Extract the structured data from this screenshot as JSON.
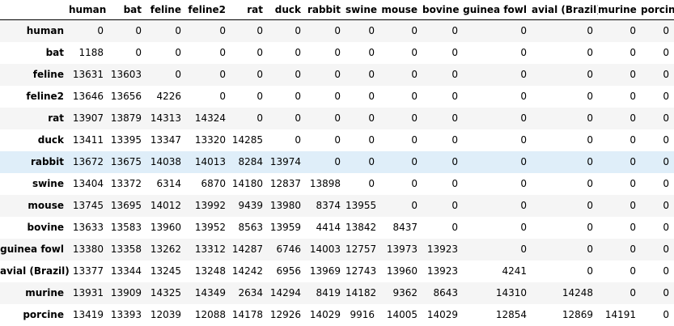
{
  "table": {
    "corner": "",
    "columns": [
      "human",
      "bat",
      "feline",
      "feline2",
      "rat",
      "duck",
      "rabbit",
      "swine",
      "mouse",
      "bovine",
      "guinea fowl",
      "avial (Brazil)",
      "murine",
      "porcine"
    ],
    "rows": [
      {
        "label": "human",
        "values": [
          "0",
          "0",
          "0",
          "0",
          "0",
          "0",
          "0",
          "0",
          "0",
          "0",
          "0",
          "0",
          "0",
          "0"
        ]
      },
      {
        "label": "bat",
        "values": [
          "1188",
          "0",
          "0",
          "0",
          "0",
          "0",
          "0",
          "0",
          "0",
          "0",
          "0",
          "0",
          "0",
          "0"
        ]
      },
      {
        "label": "feline",
        "values": [
          "13631",
          "13603",
          "0",
          "0",
          "0",
          "0",
          "0",
          "0",
          "0",
          "0",
          "0",
          "0",
          "0",
          "0"
        ]
      },
      {
        "label": "feline2",
        "values": [
          "13646",
          "13656",
          "4226",
          "0",
          "0",
          "0",
          "0",
          "0",
          "0",
          "0",
          "0",
          "0",
          "0",
          "0"
        ]
      },
      {
        "label": "rat",
        "values": [
          "13907",
          "13879",
          "14313",
          "14324",
          "0",
          "0",
          "0",
          "0",
          "0",
          "0",
          "0",
          "0",
          "0",
          "0"
        ]
      },
      {
        "label": "duck",
        "values": [
          "13411",
          "13395",
          "13347",
          "13320",
          "14285",
          "0",
          "0",
          "0",
          "0",
          "0",
          "0",
          "0",
          "0",
          "0"
        ]
      },
      {
        "label": "rabbit",
        "values": [
          "13672",
          "13675",
          "14038",
          "14013",
          "8284",
          "13974",
          "0",
          "0",
          "0",
          "0",
          "0",
          "0",
          "0",
          "0"
        ]
      },
      {
        "label": "swine",
        "values": [
          "13404",
          "13372",
          "6314",
          "6870",
          "14180",
          "12837",
          "13898",
          "0",
          "0",
          "0",
          "0",
          "0",
          "0",
          "0"
        ]
      },
      {
        "label": "mouse",
        "values": [
          "13745",
          "13695",
          "14012",
          "13992",
          "9439",
          "13980",
          "8374",
          "13955",
          "0",
          "0",
          "0",
          "0",
          "0",
          "0"
        ]
      },
      {
        "label": "bovine",
        "values": [
          "13633",
          "13583",
          "13960",
          "13952",
          "8563",
          "13959",
          "4414",
          "13842",
          "8437",
          "0",
          "0",
          "0",
          "0",
          "0"
        ]
      },
      {
        "label": "guinea fowl",
        "values": [
          "13380",
          "13358",
          "13262",
          "13312",
          "14287",
          "6746",
          "14003",
          "12757",
          "13973",
          "13923",
          "0",
          "0",
          "0",
          "0"
        ]
      },
      {
        "label": "avial (Brazil)",
        "values": [
          "13377",
          "13344",
          "13245",
          "13248",
          "14242",
          "6956",
          "13969",
          "12743",
          "13960",
          "13923",
          "4241",
          "0",
          "0",
          "0"
        ]
      },
      {
        "label": "murine",
        "values": [
          "13931",
          "13909",
          "14325",
          "14349",
          "2634",
          "14294",
          "8419",
          "14182",
          "9362",
          "8643",
          "14310",
          "14248",
          "0",
          "0"
        ]
      },
      {
        "label": "porcine",
        "values": [
          "13419",
          "13393",
          "12039",
          "12088",
          "14178",
          "12926",
          "14029",
          "9916",
          "14005",
          "14029",
          "12854",
          "12869",
          "14191",
          "0"
        ]
      }
    ],
    "highlighted_row": "rabbit"
  },
  "colors": {
    "striped_row": "#f5f5f5",
    "hover_row": "#dfeef9",
    "header_border": "#000000"
  }
}
